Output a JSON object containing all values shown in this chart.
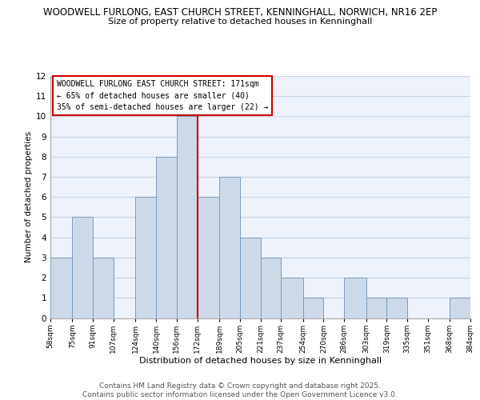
{
  "title_main": "WOODWELL FURLONG, EAST CHURCH STREET, KENNINGHALL, NORWICH, NR16 2EP",
  "title_sub": "Size of property relative to detached houses in Kenninghall",
  "xlabel": "Distribution of detached houses by size in Kenninghall",
  "ylabel": "Number of detached properties",
  "bin_edges": [
    58,
    75,
    91,
    107,
    124,
    140,
    156,
    172,
    189,
    205,
    221,
    237,
    254,
    270,
    286,
    303,
    319,
    335,
    351,
    368,
    384
  ],
  "bin_labels": [
    "58sqm",
    "75sqm",
    "91sqm",
    "107sqm",
    "124sqm",
    "140sqm",
    "156sqm",
    "172sqm",
    "189sqm",
    "205sqm",
    "221sqm",
    "237sqm",
    "254sqm",
    "270sqm",
    "286sqm",
    "303sqm",
    "319sqm",
    "335sqm",
    "351sqm",
    "368sqm",
    "384sqm"
  ],
  "counts": [
    3,
    5,
    3,
    0,
    6,
    8,
    10,
    6,
    7,
    4,
    3,
    2,
    1,
    0,
    2,
    1,
    1,
    0,
    0,
    1
  ],
  "bar_facecolor": "#cdd9e8",
  "bar_edgecolor": "#7a9cbf",
  "vline_x": 172,
  "vline_color": "#cc0000",
  "ylim": [
    0,
    12
  ],
  "yticks": [
    0,
    1,
    2,
    3,
    4,
    5,
    6,
    7,
    8,
    9,
    10,
    11,
    12
  ],
  "annotation_text": "WOODWELL FURLONG EAST CHURCH STREET: 171sqm\n← 65% of detached houses are smaller (40)\n35% of semi-detached houses are larger (22) →",
  "annotation_box_color": "#cc0000",
  "grid_color": "#c8d4e8",
  "background_color": "#eef2fa",
  "footer_text": "Contains HM Land Registry data © Crown copyright and database right 2025.\nContains public sector information licensed under the Open Government Licence v3.0.",
  "footer_fontsize": 6.5,
  "title_main_fontsize": 8.5,
  "title_sub_fontsize": 8.0,
  "ylabel_fontsize": 7.5,
  "xlabel_fontsize": 8.0,
  "ytick_fontsize": 7.5,
  "xtick_fontsize": 6.5,
  "annot_fontsize": 7.0
}
